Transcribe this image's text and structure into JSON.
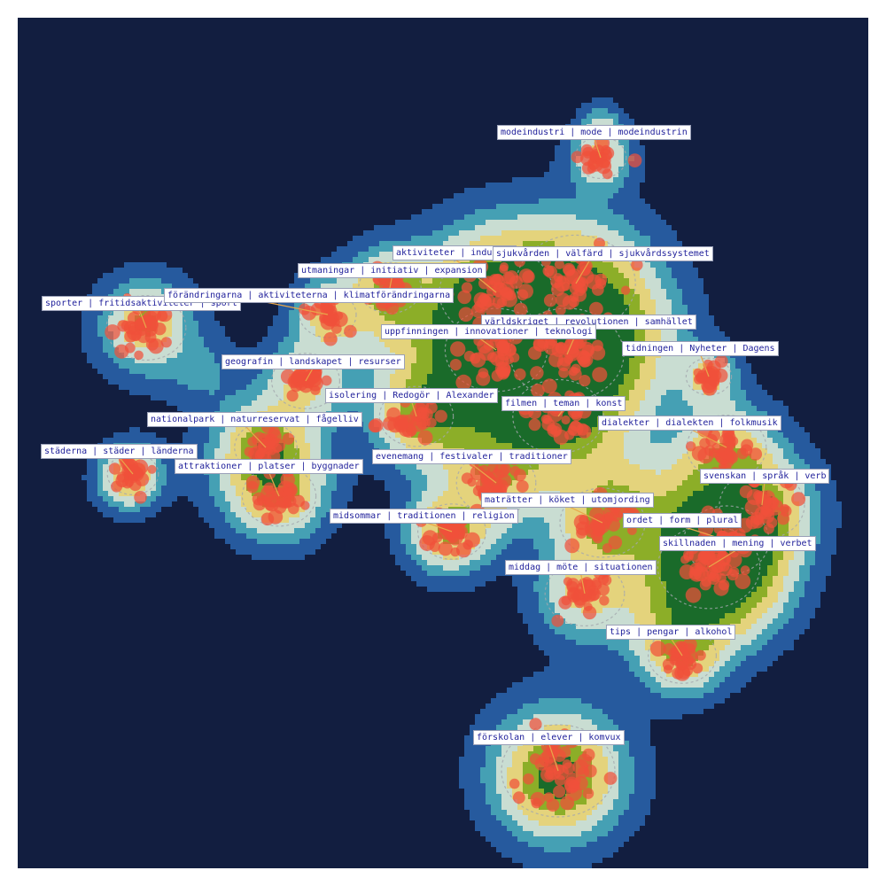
{
  "chart_data": {
    "type": "scatter",
    "subtype": "topic density map (kernel-density contours with clustered document points)",
    "title": "",
    "xlabel": "",
    "ylabel": "",
    "axes_visible": false,
    "grid": false,
    "legend": "none",
    "colors": {
      "background": "#121e40",
      "density_levels": [
        "#265a9e",
        "#45a0b4",
        "#c9ddd2",
        "#e4d37c",
        "#8cae28",
        "#1a6b2a"
      ],
      "points": "#f0503a",
      "leader_lines": "#e8a64a",
      "cluster_outline": "#a4a8ae",
      "label_text": "#1f1f9a"
    },
    "clusters": [
      {
        "label": "modeindustri | mode | modeindustrin"
      },
      {
        "label": "aktiviteter | industri"
      },
      {
        "label": "sjukvården | välfärd | sjukvårdssystemet"
      },
      {
        "label": "utmaningar | initiativ | expansion"
      },
      {
        "label": "sporter | fritidsaktiviteter | sport"
      },
      {
        "label": "förändringarna | aktiviteterna | klimatförändringarna"
      },
      {
        "label": "världskriget | revolutionen | samhället"
      },
      {
        "label": "uppfinningen | innovationer | teknologi"
      },
      {
        "label": "tidningen | Nyheter | Dagens"
      },
      {
        "label": "geografin | landskapet | resurser"
      },
      {
        "label": "isolering | Redogör | Alexander"
      },
      {
        "label": "filmen | teman | konst"
      },
      {
        "label": "nationalpark | naturreservat | fågelliv"
      },
      {
        "label": "dialekter | dialekten | folkmusik"
      },
      {
        "label": "städerna | städer | länderna"
      },
      {
        "label": "evenemang | festivaler | traditioner"
      },
      {
        "label": "attraktioner | platser | byggnader"
      },
      {
        "label": "svenskan | språk | verb"
      },
      {
        "label": "maträtter | köket | utomjording"
      },
      {
        "label": "midsommar | traditionen | religion"
      },
      {
        "label": "ordet | form | plural"
      },
      {
        "label": "skillnaden | mening | verbet"
      },
      {
        "label": "middag | möte | situationen"
      },
      {
        "label": "tips | pengar | alkohol"
      },
      {
        "label": "förskolan | elever | komvux"
      }
    ]
  }
}
